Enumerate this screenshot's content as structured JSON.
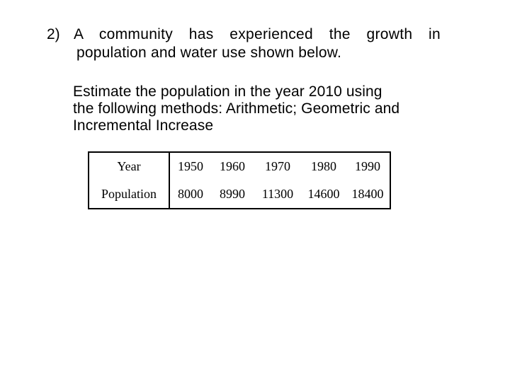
{
  "problem": {
    "number": "2)",
    "line1": "A community has experienced the growth in",
    "line2": "population and water use shown below."
  },
  "instruction": {
    "line1": "Estimate the population in the year 2010 using",
    "line2": "the following methods: Arithmetic; Geometric and",
    "line3": "Incremental Increase"
  },
  "table": {
    "rows": [
      {
        "label": "Year",
        "values": [
          "1950",
          "1960",
          "1970",
          "1980",
          "1990"
        ]
      },
      {
        "label": "Population",
        "values": [
          "8000",
          "8990",
          "11300",
          "14600",
          "18400"
        ]
      }
    ]
  }
}
